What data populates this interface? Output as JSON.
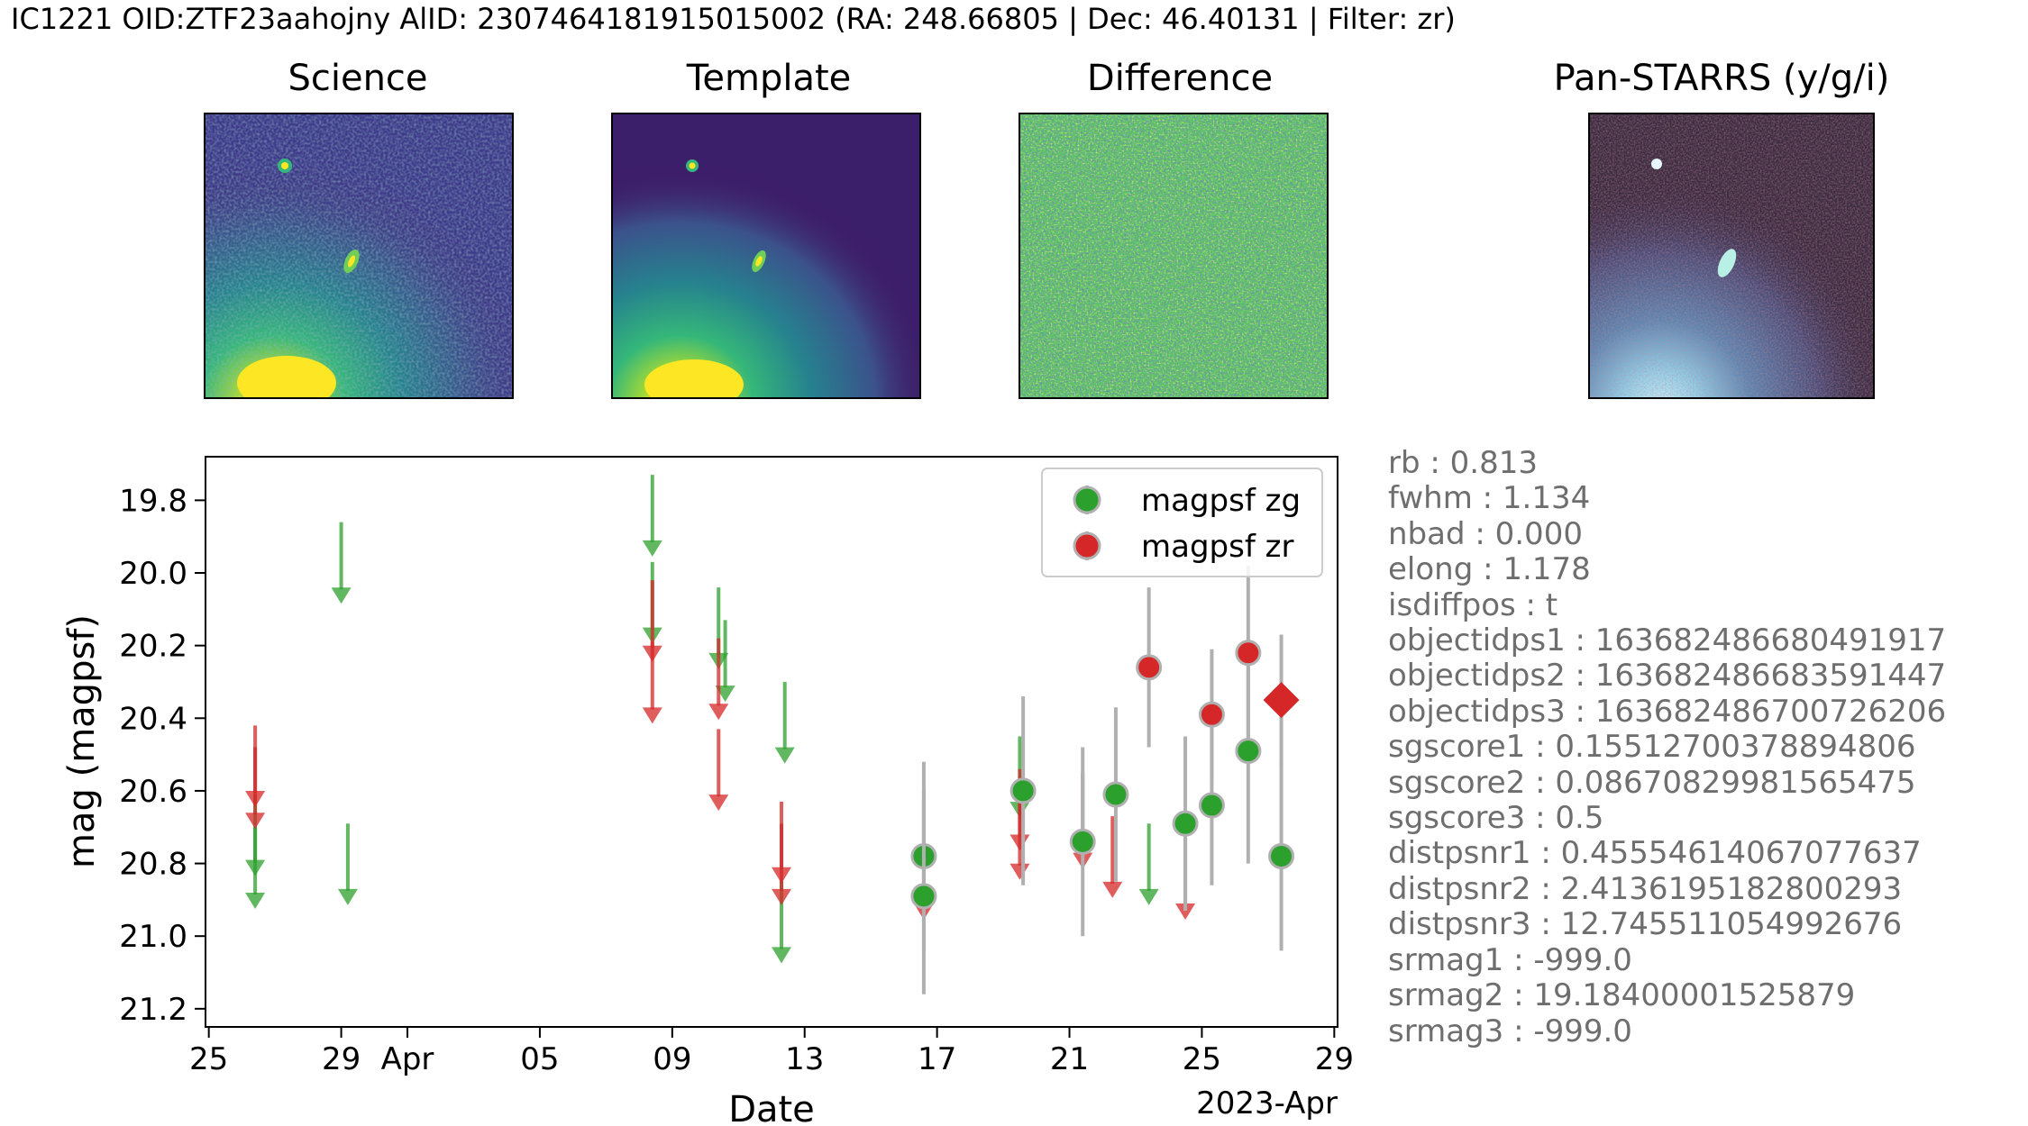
{
  "title": "IC1221 OID:ZTF23aahojny AlID: 2307464181915015002 (RA: 248.66805 | Dec: 46.40131 | Filter: zr)",
  "cutouts": [
    {
      "label": "Science",
      "name": "science"
    },
    {
      "label": "Template",
      "name": "template"
    },
    {
      "label": "Difference",
      "name": "difference"
    },
    {
      "label": "Pan-STARRS (y/g/i)",
      "name": "panstarrs"
    }
  ],
  "metadata": [
    "rb : 0.813",
    "fwhm : 1.134",
    "nbad : 0.000",
    "elong : 1.178",
    "isdiffpos : t",
    "objectidps1 : 163682486680491917",
    "objectidps2 : 163682486683591447",
    "objectidps3 : 163682486700726206",
    "sgscore1 : 0.15512700378894806",
    "sgscore2 : 0.08670829981565475",
    "sgscore3 : 0.5",
    "distpsnr1 : 0.45554614067077637",
    "distpsnr2 : 2.4136195182800293",
    "distpsnr3 : 12.745511054992676",
    "srmag1 : -999.0",
    "srmag2 : 19.18400001525879",
    "srmag3 : -999.0"
  ],
  "colors": {
    "zg": "#2ca02c",
    "zr": "#d62728",
    "err": "#b0b0b0"
  },
  "chart_data": {
    "type": "scatter",
    "xlabel": "Date",
    "ylabel": "mag (magpsf)",
    "x_offset_label": "2023-Apr",
    "xlim": [
      -6.1,
      28.1
    ],
    "ylim": [
      21.25,
      19.68
    ],
    "y_inverted": true,
    "xticks": [
      {
        "v": -6,
        "label": "25"
      },
      {
        "v": -2,
        "label": "29"
      },
      {
        "v": 0,
        "label": "Apr"
      },
      {
        "v": 4,
        "label": "05"
      },
      {
        "v": 8,
        "label": "09"
      },
      {
        "v": 12,
        "label": "13"
      },
      {
        "v": 16,
        "label": "17"
      },
      {
        "v": 20,
        "label": "21"
      },
      {
        "v": 24,
        "label": "25"
      },
      {
        "v": 28,
        "label": "29"
      }
    ],
    "yticks": [
      19.8,
      20.0,
      20.2,
      20.4,
      20.6,
      20.8,
      21.0,
      21.2
    ],
    "legend": [
      {
        "label": "magpsf zg",
        "series": "zg"
      },
      {
        "label": "magpsf zr",
        "series": "zr"
      }
    ],
    "legend_position": "top-right",
    "series": [
      {
        "name": "magpsf zg",
        "detections": [
          {
            "x": 15.6,
            "y": 20.78,
            "err": 0.26
          },
          {
            "x": 15.6,
            "y": 20.89,
            "err": 0.27
          },
          {
            "x": 18.6,
            "y": 20.6,
            "err": 0.26
          },
          {
            "x": 20.4,
            "y": 20.74,
            "err": 0.26
          },
          {
            "x": 21.4,
            "y": 20.61,
            "err": 0.24
          },
          {
            "x": 23.5,
            "y": 20.69,
            "err": 0.24
          },
          {
            "x": 24.3,
            "y": 20.64,
            "err": 0.22
          },
          {
            "x": 25.4,
            "y": 20.49,
            "err": 0.31
          },
          {
            "x": 26.4,
            "y": 20.78,
            "err": 0.26
          }
        ],
        "upper_limits": [
          {
            "x": -4.6,
            "y": 20.83,
            "from": 20.61
          },
          {
            "x": -4.6,
            "y": 20.92,
            "from": 20.7
          },
          {
            "x": -2.0,
            "y": 20.08,
            "from": 19.86
          },
          {
            "x": -1.8,
            "y": 20.91,
            "from": 20.69
          },
          {
            "x": 7.4,
            "y": 19.95,
            "from": 19.73
          },
          {
            "x": 7.4,
            "y": 20.19,
            "from": 19.97
          },
          {
            "x": 9.4,
            "y": 20.26,
            "from": 20.04
          },
          {
            "x": 9.6,
            "y": 20.35,
            "from": 20.13
          },
          {
            "x": 11.4,
            "y": 20.52,
            "from": 20.3
          },
          {
            "x": 11.3,
            "y": 21.07,
            "from": 20.85
          },
          {
            "x": 18.5,
            "y": 20.67,
            "from": 20.45
          },
          {
            "x": 22.4,
            "y": 20.91,
            "from": 20.69
          }
        ]
      },
      {
        "name": "magpsf zr",
        "detections": [
          {
            "x": 22.4,
            "y": 20.26,
            "err": 0.22
          },
          {
            "x": 24.3,
            "y": 20.39,
            "err": 0.18
          },
          {
            "x": 25.4,
            "y": 20.22,
            "err": 0.24
          }
        ],
        "upper_limits": [
          {
            "x": -4.6,
            "y": 20.64,
            "from": 20.42
          },
          {
            "x": -4.6,
            "y": 20.7,
            "from": 20.48
          },
          {
            "x": 7.4,
            "y": 20.24,
            "from": 20.02
          },
          {
            "x": 7.4,
            "y": 20.41,
            "from": 20.19
          },
          {
            "x": 9.4,
            "y": 20.4,
            "from": 20.18
          },
          {
            "x": 9.4,
            "y": 20.65,
            "from": 20.43
          },
          {
            "x": 11.3,
            "y": 20.85,
            "from": 20.63
          },
          {
            "x": 11.3,
            "y": 20.91,
            "from": 20.69
          },
          {
            "x": 15.6,
            "y": 20.95,
            "from": 20.6
          },
          {
            "x": 18.5,
            "y": 20.76,
            "from": 20.54
          },
          {
            "x": 18.5,
            "y": 20.84,
            "from": 20.62
          },
          {
            "x": 20.4,
            "y": 20.81,
            "from": 20.55
          },
          {
            "x": 21.3,
            "y": 20.89,
            "from": 20.67
          },
          {
            "x": 23.5,
            "y": 20.95,
            "from": 20.73
          }
        ],
        "current": {
          "x": 26.4,
          "y": 20.35,
          "err": 0.18
        }
      }
    ]
  }
}
